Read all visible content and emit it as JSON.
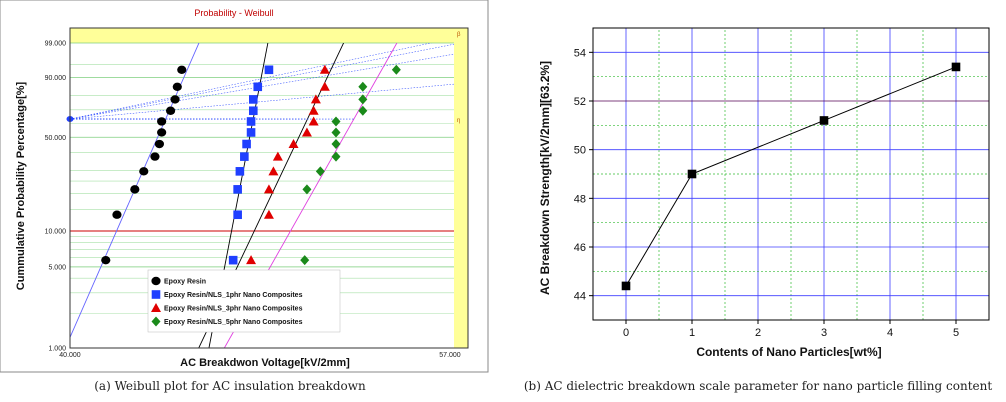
{
  "captions": {
    "left": "(a) Weibull plot for AC insulation breakdown",
    "right": "(b) AC dielectric breakdown scale parameter for nano particle filling content"
  },
  "chart_data": [
    {
      "type": "scatter",
      "title": "Probability - Weibull",
      "xlabel": "AC Breakdwon Voltage[kV/2mm]",
      "ylabel": "Cummulative Probability Percentage[%]",
      "xlim": [
        40.0,
        57.0
      ],
      "x_tick_labels": [
        "40.000",
        "57.000"
      ],
      "y_scale": "weibull",
      "y_tick_labels": [
        "1.000",
        "5.000",
        "10.000",
        "50.000",
        "90.000",
        "99.000"
      ],
      "y_ticks": [
        1,
        5,
        10,
        50,
        90,
        99
      ],
      "grid": true,
      "legend_position": "bottom-left",
      "colors": {
        "background": "#ffffff",
        "header_band": "#ffff99",
        "title": "#c00000",
        "axes_text": "#222222",
        "eta_marker": "#1f3fff",
        "ten_percent_line": "#cc0000"
      },
      "eta_probability_marker": 63.2,
      "corner_labels": [
        "β",
        "η"
      ],
      "series": [
        {
          "name": "Epoxy Resin",
          "marker": "circle",
          "color": "#000000",
          "points": [
            [
              41.6,
              5.7
            ],
            [
              42.1,
              13.6
            ],
            [
              42.9,
              21.6
            ],
            [
              43.3,
              29.5
            ],
            [
              43.8,
              37.5
            ],
            [
              44.0,
              45.4
            ],
            [
              44.1,
              53.4
            ],
            [
              44.1,
              61.4
            ],
            [
              44.5,
              69.3
            ],
            [
              44.7,
              77.3
            ],
            [
              44.8,
              85.2
            ],
            [
              45.0,
              93.2
            ]
          ],
          "fit_line_color": "#6464ff"
        },
        {
          "name": "Epoxy Resin/NLS_1phr Nano Composites",
          "marker": "square",
          "color": "#1f3fff",
          "points": [
            [
              47.3,
              5.7
            ],
            [
              47.5,
              13.6
            ],
            [
              47.5,
              21.6
            ],
            [
              47.6,
              29.5
            ],
            [
              47.8,
              37.5
            ],
            [
              47.9,
              45.4
            ],
            [
              48.1,
              53.4
            ],
            [
              48.1,
              61.4
            ],
            [
              48.2,
              69.3
            ],
            [
              48.2,
              77.3
            ],
            [
              48.4,
              85.2
            ],
            [
              48.9,
              93.2
            ]
          ],
          "fit_line_color": "#000000"
        },
        {
          "name": "Epoxy Resin/NLS_3phr Nano Composites",
          "marker": "triangle",
          "color": "#e00000",
          "points": [
            [
              48.1,
              5.7
            ],
            [
              48.9,
              13.6
            ],
            [
              48.9,
              21.6
            ],
            [
              49.1,
              29.5
            ],
            [
              49.3,
              37.5
            ],
            [
              50.0,
              45.4
            ],
            [
              50.6,
              53.4
            ],
            [
              50.9,
              61.4
            ],
            [
              50.9,
              69.3
            ],
            [
              51.0,
              77.3
            ],
            [
              51.4,
              85.2
            ],
            [
              51.4,
              93.2
            ]
          ],
          "fit_line_color": "#000000"
        },
        {
          "name": "Epoxy Resin/NLS_5phr Nano Composites",
          "marker": "diamond",
          "color": "#1a8a1a",
          "points": [
            [
              50.5,
              5.7
            ],
            [
              50.6,
              21.6
            ],
            [
              51.2,
              29.5
            ],
            [
              51.9,
              37.5
            ],
            [
              51.9,
              45.4
            ],
            [
              51.9,
              53.4
            ],
            [
              51.9,
              61.4
            ],
            [
              53.1,
              69.3
            ],
            [
              53.1,
              77.3
            ],
            [
              53.1,
              85.2
            ],
            [
              54.6,
              93.2
            ]
          ],
          "fit_line_color": "#e040e0"
        }
      ]
    },
    {
      "type": "line",
      "xlabel": "Contents of Nano Particles[wt%]",
      "ylabel": "AC Breakdown Strength[kV/2mm][63.2%]",
      "x": [
        0,
        1,
        3,
        5
      ],
      "values": [
        44.4,
        49.0,
        51.2,
        53.4
      ],
      "xlim": [
        -0.5,
        5.5
      ],
      "ylim": [
        43.0,
        55.0
      ],
      "x_tick_labels": [
        "0",
        "1",
        "2",
        "3",
        "4",
        "5"
      ],
      "y_tick_labels": [
        "44",
        "46",
        "48",
        "50",
        "52",
        "54"
      ],
      "grid": true,
      "marker": "square",
      "colors": {
        "line": "#000000",
        "major_grid": "#3f3fff",
        "minor_grid": "#33bb33",
        "hline_52": "#550055"
      }
    }
  ]
}
